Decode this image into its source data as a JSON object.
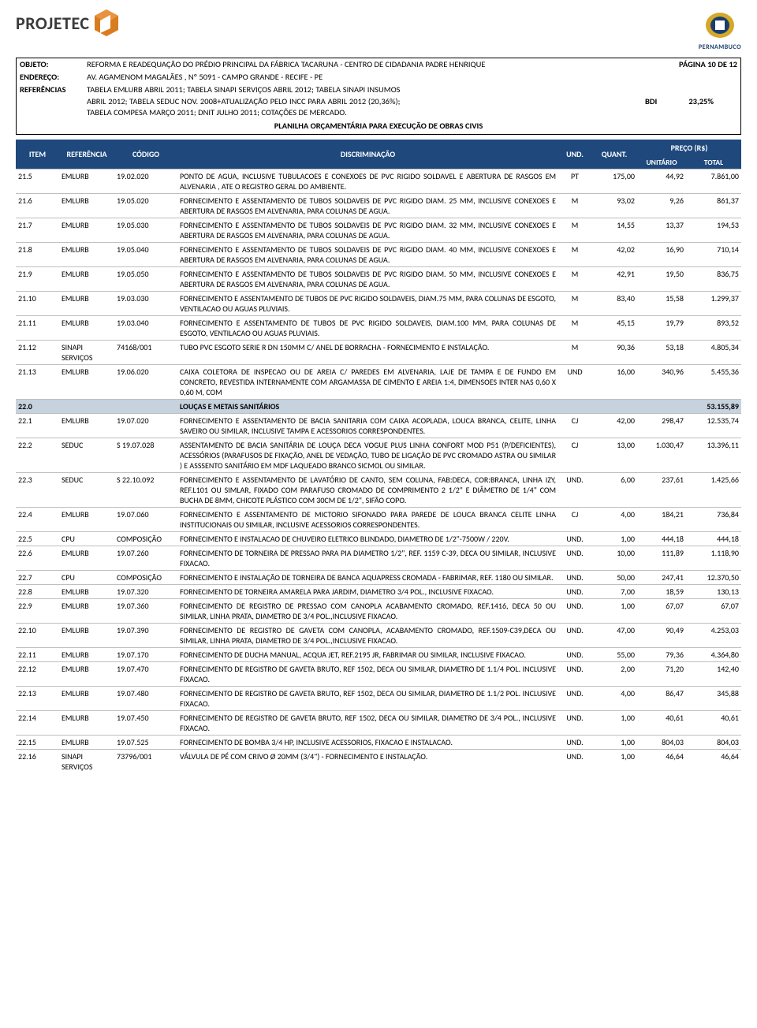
{
  "header": {
    "logo_left": "PROJETEC",
    "logo_right": "PERNAMBUCO",
    "objeto_label": "OBJETO:",
    "objeto": "REFORMA E READEQUAÇÃO DO PRÉDIO PRINCIPAL DA FÁBRICA TACARUNA - CENTRO DE CIDADANIA PADRE HENRIQUE",
    "endereco_label": "ENDEREÇO:",
    "endereco": "AV. AGAMENOM MAGALÃES , Nº 5091 - CAMPO GRANDE - RECIFE - PE",
    "ref_label": "REFERÊNCIAS",
    "ref": "TABELA EMLURB ABRIL 2011; TABELA SINAPI SERVIÇOS ABRIL 2012; TABELA SINAPI INSUMOS ABRIL 2012; TABELA SEDUC NOV. 2008+ATUALIZAÇÃO PELO INCC PARA ABRIL 2012 (20,36%); TABELA COMPESA MARÇO 2011; DNIT JULHO 2011; COTAÇÕES DE MERCADO.",
    "page_label": "PÁGINA 10 DE 12",
    "bdi_label": "BDI",
    "bdi_value": "23,25%",
    "plan_title": "PLANILHA ORÇAMENTÁRIA PARA EXECUÇÃO DE OBRAS CIVIS"
  },
  "thead": {
    "item": "ITEM",
    "ref": "REFERÊNCIA",
    "cod": "CÓDIGO",
    "desc": "DISCRIMINAÇÃO",
    "und": "UND.",
    "qt": "QUANT.",
    "preco": "PREÇO (R$)",
    "pu": "UNITÁRIO",
    "pt": "TOTAL"
  },
  "colors": {
    "header_bg": "#1f497d",
    "section_bg": "#c6d2de",
    "border": "#bfbfbf"
  },
  "rows": [
    {
      "item": "21.5",
      "ref": "EMLURB",
      "cod": "19.02.020",
      "desc": "PONTO DE AGUA, INCLUSIVE TUBULACOES E CONEXOES DE PVC RIGIDO SOLDAVEL E ABERTURA DE RASGOS EM ALVENARIA , ATE O REGISTRO GERAL DO AMBIENTE.",
      "und": "PT",
      "qt": "175,00",
      "pu": "44,92",
      "pt": "7.861,00"
    },
    {
      "item": "21.6",
      "ref": "EMLURB",
      "cod": "19.05.020",
      "desc": "FORNECIMENTO E ASSENTAMENTO DE TUBOS SOLDAVEIS DE PVC RIGIDO DIAM. 25 MM, INCLUSIVE CONEXOES E ABERTURA DE RASGOS EM ALVENARIA, PARA COLUNAS DE AGUA.",
      "und": "M",
      "qt": "93,02",
      "pu": "9,26",
      "pt": "861,37"
    },
    {
      "item": "21.7",
      "ref": "EMLURB",
      "cod": "19.05.030",
      "desc": "FORNECIMENTO E ASSENTAMENTO DE TUBOS SOLDAVEIS DE PVC RIGIDO DIAM. 32 MM, INCLUSIVE CONEXOES E ABERTURA DE RASGOS EM ALVENARIA, PARA COLUNAS DE AGUA.",
      "und": "M",
      "qt": "14,55",
      "pu": "13,37",
      "pt": "194,53"
    },
    {
      "item": "21.8",
      "ref": "EMLURB",
      "cod": "19.05.040",
      "desc": "FORNECIMENTO E ASSENTAMENTO DE TUBOS SOLDAVEIS DE PVC RIGIDO DIAM. 40 MM, INCLUSIVE CONEXOES E ABERTURA DE RASGOS EM ALVENARIA, PARA COLUNAS DE AGUA.",
      "und": "M",
      "qt": "42,02",
      "pu": "16,90",
      "pt": "710,14"
    },
    {
      "item": "21.9",
      "ref": "EMLURB",
      "cod": "19.05.050",
      "desc": "FORNECIMENTO E ASSENTAMENTO DE TUBOS SOLDAVEIS DE PVC RIGIDO DIAM. 50 MM, INCLUSIVE CONEXOES E ABERTURA DE RASGOS EM ALVENARIA, PARA COLUNAS DE AGUA.",
      "und": "M",
      "qt": "42,91",
      "pu": "19,50",
      "pt": "836,75"
    },
    {
      "item": "21.10",
      "ref": "EMLURB",
      "cod": "19.03.030",
      "desc": "FORNECIMENTO E ASSENTAMENTO DE TUBOS DE PVC RIGIDO SOLDAVEIS, DIAM.75 MM, PARA COLUNAS DE ESGOTO, VENTILACAO OU AGUAS PLUVIAIS.",
      "und": "M",
      "qt": "83,40",
      "pu": "15,58",
      "pt": "1.299,37"
    },
    {
      "item": "21.11",
      "ref": "EMLURB",
      "cod": "19.03.040",
      "desc": "FORNECIMENTO E ASSENTAMENTO DE TUBOS DE PVC RIGIDO SOLDAVEIS, DIAM.100 MM, PARA COLUNAS DE ESGOTO, VENTILACAO OU AGUAS PLUVIAIS.",
      "und": "M",
      "qt": "45,15",
      "pu": "19,79",
      "pt": "893,52"
    },
    {
      "item": "21.12",
      "ref": "SINAPI SERVIÇOS",
      "cod": "74168/001",
      "desc": "TUBO PVC ESGOTO SERIE R DN 150MM C/ ANEL DE BORRACHA - FORNECIMENTO E INSTALAÇÃO.",
      "und": "M",
      "qt": "90,36",
      "pu": "53,18",
      "pt": "4.805,34"
    },
    {
      "item": "21.13",
      "ref": "EMLURB",
      "cod": "19.06.020",
      "desc": "CAIXA COLETORA DE INSPECAO OU DE AREIA C/ PAREDES EM ALVENARIA, LAJE DE TAMPA E DE FUNDO EM CONCRETO, REVESTIDA INTERNAMENTE COM ARGAMASSA DE CIMENTO E AREIA 1:4, DIMENSOES INTER NAS 0,60 X 0,60 M, COM",
      "und": "UND",
      "qt": "16,00",
      "pu": "340,96",
      "pt": "5.455,36"
    },
    {
      "section": true,
      "item": "22.0",
      "ref": "",
      "cod": "",
      "desc": "LOUÇAS E METAIS SANITÁRIOS",
      "und": "",
      "qt": "",
      "pu": "",
      "pt": "53.155,89"
    },
    {
      "item": "22.1",
      "ref": "EMLURB",
      "cod": "19.07.020",
      "desc": "FORNECIMENTO E ASSENTAMENTO DE BACIA SANITARIA COM CAIXA ACOPLADA, LOUCA BRANCA, CELITE, LINHA SAVEIRO OU SIMILAR, INCLUSIVE TAMPA E ACESSORIOS CORRESPONDENTES.",
      "und": "CJ",
      "qt": "42,00",
      "pu": "298,47",
      "pt": "12.535,74"
    },
    {
      "item": "22.2",
      "ref": "SEDUC",
      "cod": "S 19.07.028",
      "desc": "ASSENTAMENTO DE BACIA SANITÁRIA DE LOUÇA DECA VOGUE PLUS LINHA CONFORT MOD P51 (P/DEFICIENTES), ACESSÓRIOS (PARAFUSOS DE FIXAÇÃO, ANEL DE VEDAÇÃO, TUBO DE LIGAÇÃO DE PVC CROMADO ASTRA OU SIMILAR ) E ASSSENTO SANITÁRIO EM MDF LAQUEADO BRANCO SICMOL OU SIMILAR.",
      "und": "CJ",
      "qt": "13,00",
      "pu": "1.030,47",
      "pt": "13.396,11"
    },
    {
      "item": "22.3",
      "ref": "SEDUC",
      "cod": "S 22.10.092",
      "desc": "FORNECIMENTO E ASSENTAMENTO DE LAVATÓRIO DE CANTO, SEM COLUNA, FAB:DECA, COR:BRANCA, LINHA IZY, REF.L101 OU SIMLAR, FIXADO COM PARAFUSO CROMADO DE COMPRIMENTO 2 1/2\" E DIÂMETRO DE 1/4\" COM BUCHA DE 8MM, CHICOTE PLÁSTICO COM 30CM DE 1/2\", SIFÃO COPO.",
      "und": "UND.",
      "qt": "6,00",
      "pu": "237,61",
      "pt": "1.425,66"
    },
    {
      "item": "22.4",
      "ref": "EMLURB",
      "cod": "19.07.060",
      "desc": "FORNECIMENTO E ASSENTAMENTO DE MICTORIO SIFONADO PARA PAREDE DE LOUCA BRANCA CELITE LINHA INSTITUCIONAIS OU SIMILAR, INCLUSIVE ACESSORIOS CORRESPONDENTES.",
      "und": "CJ",
      "qt": "4,00",
      "pu": "184,21",
      "pt": "736,84"
    },
    {
      "item": "22.5",
      "ref": "CPU",
      "cod": "COMPOSIÇÃO",
      "desc": "FORNECIMENTO E INSTALACAO DE CHUVEIRO ELETRICO BLINDADO, DIAMETRO DE 1/2\"-7500W / 220V.",
      "und": "UND.",
      "qt": "1,00",
      "pu": "444,18",
      "pt": "444,18"
    },
    {
      "item": "22.6",
      "ref": "EMLURB",
      "cod": "19.07.260",
      "desc": "FORNECIMENTO DE TORNEIRA DE PRESSAO PARA PIA DIAMETRO 1/2\", REF. 1159 C-39, DECA OU SIMILAR, INCLUSIVE FIXACAO.",
      "und": "UND.",
      "qt": "10,00",
      "pu": "111,89",
      "pt": "1.118,90"
    },
    {
      "item": "22.7",
      "ref": "CPU",
      "cod": "COMPOSIÇÃO",
      "desc": "FORNECIMENTO E INSTALAÇÃO DE TORNEIRA DE BANCA AQUAPRESS CROMADA - FABRIMAR, REF. 1180 OU SIMILAR.",
      "und": "UND.",
      "qt": "50,00",
      "pu": "247,41",
      "pt": "12.370,50"
    },
    {
      "item": "22.8",
      "ref": "EMLURB",
      "cod": "19.07.320",
      "desc": "FORNECIMENTO DE TORNEIRA AMARELA PARA JARDIM, DIAMETRO 3/4 POL., INCLUSIVE FIXACAO.",
      "und": "UND.",
      "qt": "7,00",
      "pu": "18,59",
      "pt": "130,13"
    },
    {
      "item": "22.9",
      "ref": "EMLURB",
      "cod": "19.07.360",
      "desc": "FORNECIMENTO DE REGISTRO DE PRESSAO COM CANOPLA ACABAMENTO CROMADO, REF.1416, DECA 50 OU SIMILAR, LINHA PRATA, DIAMETRO DE 3/4 POL.,INCLUSIVE FIXACAO.",
      "und": "UND.",
      "qt": "1,00",
      "pu": "67,07",
      "pt": "67,07"
    },
    {
      "item": "22.10",
      "ref": "EMLURB",
      "cod": "19.07.390",
      "desc": "FORNECIMENTO DE REGISTRO DE GAVETA COM CANOPLA, ACABAMENTO CROMADO, REF.1509-C39,DECA OU SIMILAR, LINHA PRATA, DIAMETRO DE 3/4 POL.,INCLUSIVE FIXACAO.",
      "und": "UND.",
      "qt": "47,00",
      "pu": "90,49",
      "pt": "4.253,03"
    },
    {
      "item": "22.11",
      "ref": "EMLURB",
      "cod": "19.07.170",
      "desc": "FORNECIMENTO DE DUCHA MANUAL, ACQUA JET, REF.2195 JR, FABRIMAR OU SIMILAR, INCLUSIVE FIXACAO.",
      "und": "UND.",
      "qt": "55,00",
      "pu": "79,36",
      "pt": "4.364,80"
    },
    {
      "item": "22.12",
      "ref": "EMLURB",
      "cod": "19.07.470",
      "desc": "FORNECIMENTO DE REGISTRO DE GAVETA BRUTO, REF 1502, DECA OU SIMILAR, DIAMETRO DE 1.1/4 POL. INCLUSIVE FIXACAO.",
      "und": "UND.",
      "qt": "2,00",
      "pu": "71,20",
      "pt": "142,40"
    },
    {
      "item": "22.13",
      "ref": "EMLURB",
      "cod": "19.07.480",
      "desc": "FORNECIMENTO DE REGISTRO DE GAVETA BRUTO, REF 1502, DECA OU SIMILAR, DIAMETRO DE 1.1/2 POL. INCLUSIVE FIXACAO.",
      "und": "UND.",
      "qt": "4,00",
      "pu": "86,47",
      "pt": "345,88"
    },
    {
      "item": "22.14",
      "ref": "EMLURB",
      "cod": "19.07.450",
      "desc": "FORNECIMENTO DE REGISTRO DE GAVETA BRUTO, REF 1502, DECA OU SIMILAR, DIAMETRO DE 3/4 POL., INCLUSIVE FIXACAO.",
      "und": "UND.",
      "qt": "1,00",
      "pu": "40,61",
      "pt": "40,61"
    },
    {
      "item": "22.15",
      "ref": "EMLURB",
      "cod": "19.07.525",
      "desc": "FORNECIMENTO DE BOMBA 3/4 HP, INCLUSIVE ACESSORIOS, FIXACAO E INSTALACAO.",
      "und": "UND.",
      "qt": "1,00",
      "pu": "804,03",
      "pt": "804,03"
    },
    {
      "item": "22.16",
      "ref": "SINAPI SERVIÇOS",
      "cod": "73796/001",
      "desc": "VÁLVULA DE PÉ COM CRIVO Ø 20MM (3/4\") - FORNECIMENTO E INSTALAÇÃO.",
      "und": "UND.",
      "qt": "1,00",
      "pu": "46,64",
      "pt": "46,64"
    }
  ]
}
